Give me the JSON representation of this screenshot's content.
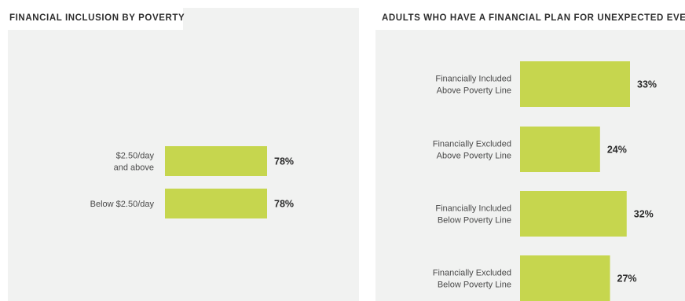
{
  "colors": {
    "bar": "#c6d64e",
    "panel": "#f1f2f1",
    "text": "#4a4a4a"
  },
  "chart_data": [
    {
      "type": "bar",
      "orientation": "horizontal",
      "title": "FINANCIAL INCLUSION BY POVERTY",
      "categories": [
        [
          "$2.50/day",
          "and above"
        ],
        [
          "Below $2.50/day"
        ]
      ],
      "values": [
        78,
        78
      ],
      "value_labels": [
        "78%",
        "78%"
      ],
      "xlim": [
        0,
        100
      ]
    },
    {
      "type": "bar",
      "orientation": "horizontal",
      "title": "ADULTS WHO HAVE A FINANCIAL PLAN FOR UNEXPECTED EVENTS",
      "categories": [
        [
          "Financially Included",
          "Above Poverty Line"
        ],
        [
          "Financially Excluded",
          "Above Poverty Line"
        ],
        [
          "Financially Included",
          "Below Poverty Line"
        ],
        [
          "Financially Excluded",
          "Below Poverty Line"
        ]
      ],
      "values": [
        33,
        24,
        32,
        27
      ],
      "value_labels": [
        "33%",
        "24%",
        "32%",
        "27%"
      ],
      "xlim": [
        0,
        35
      ]
    }
  ]
}
